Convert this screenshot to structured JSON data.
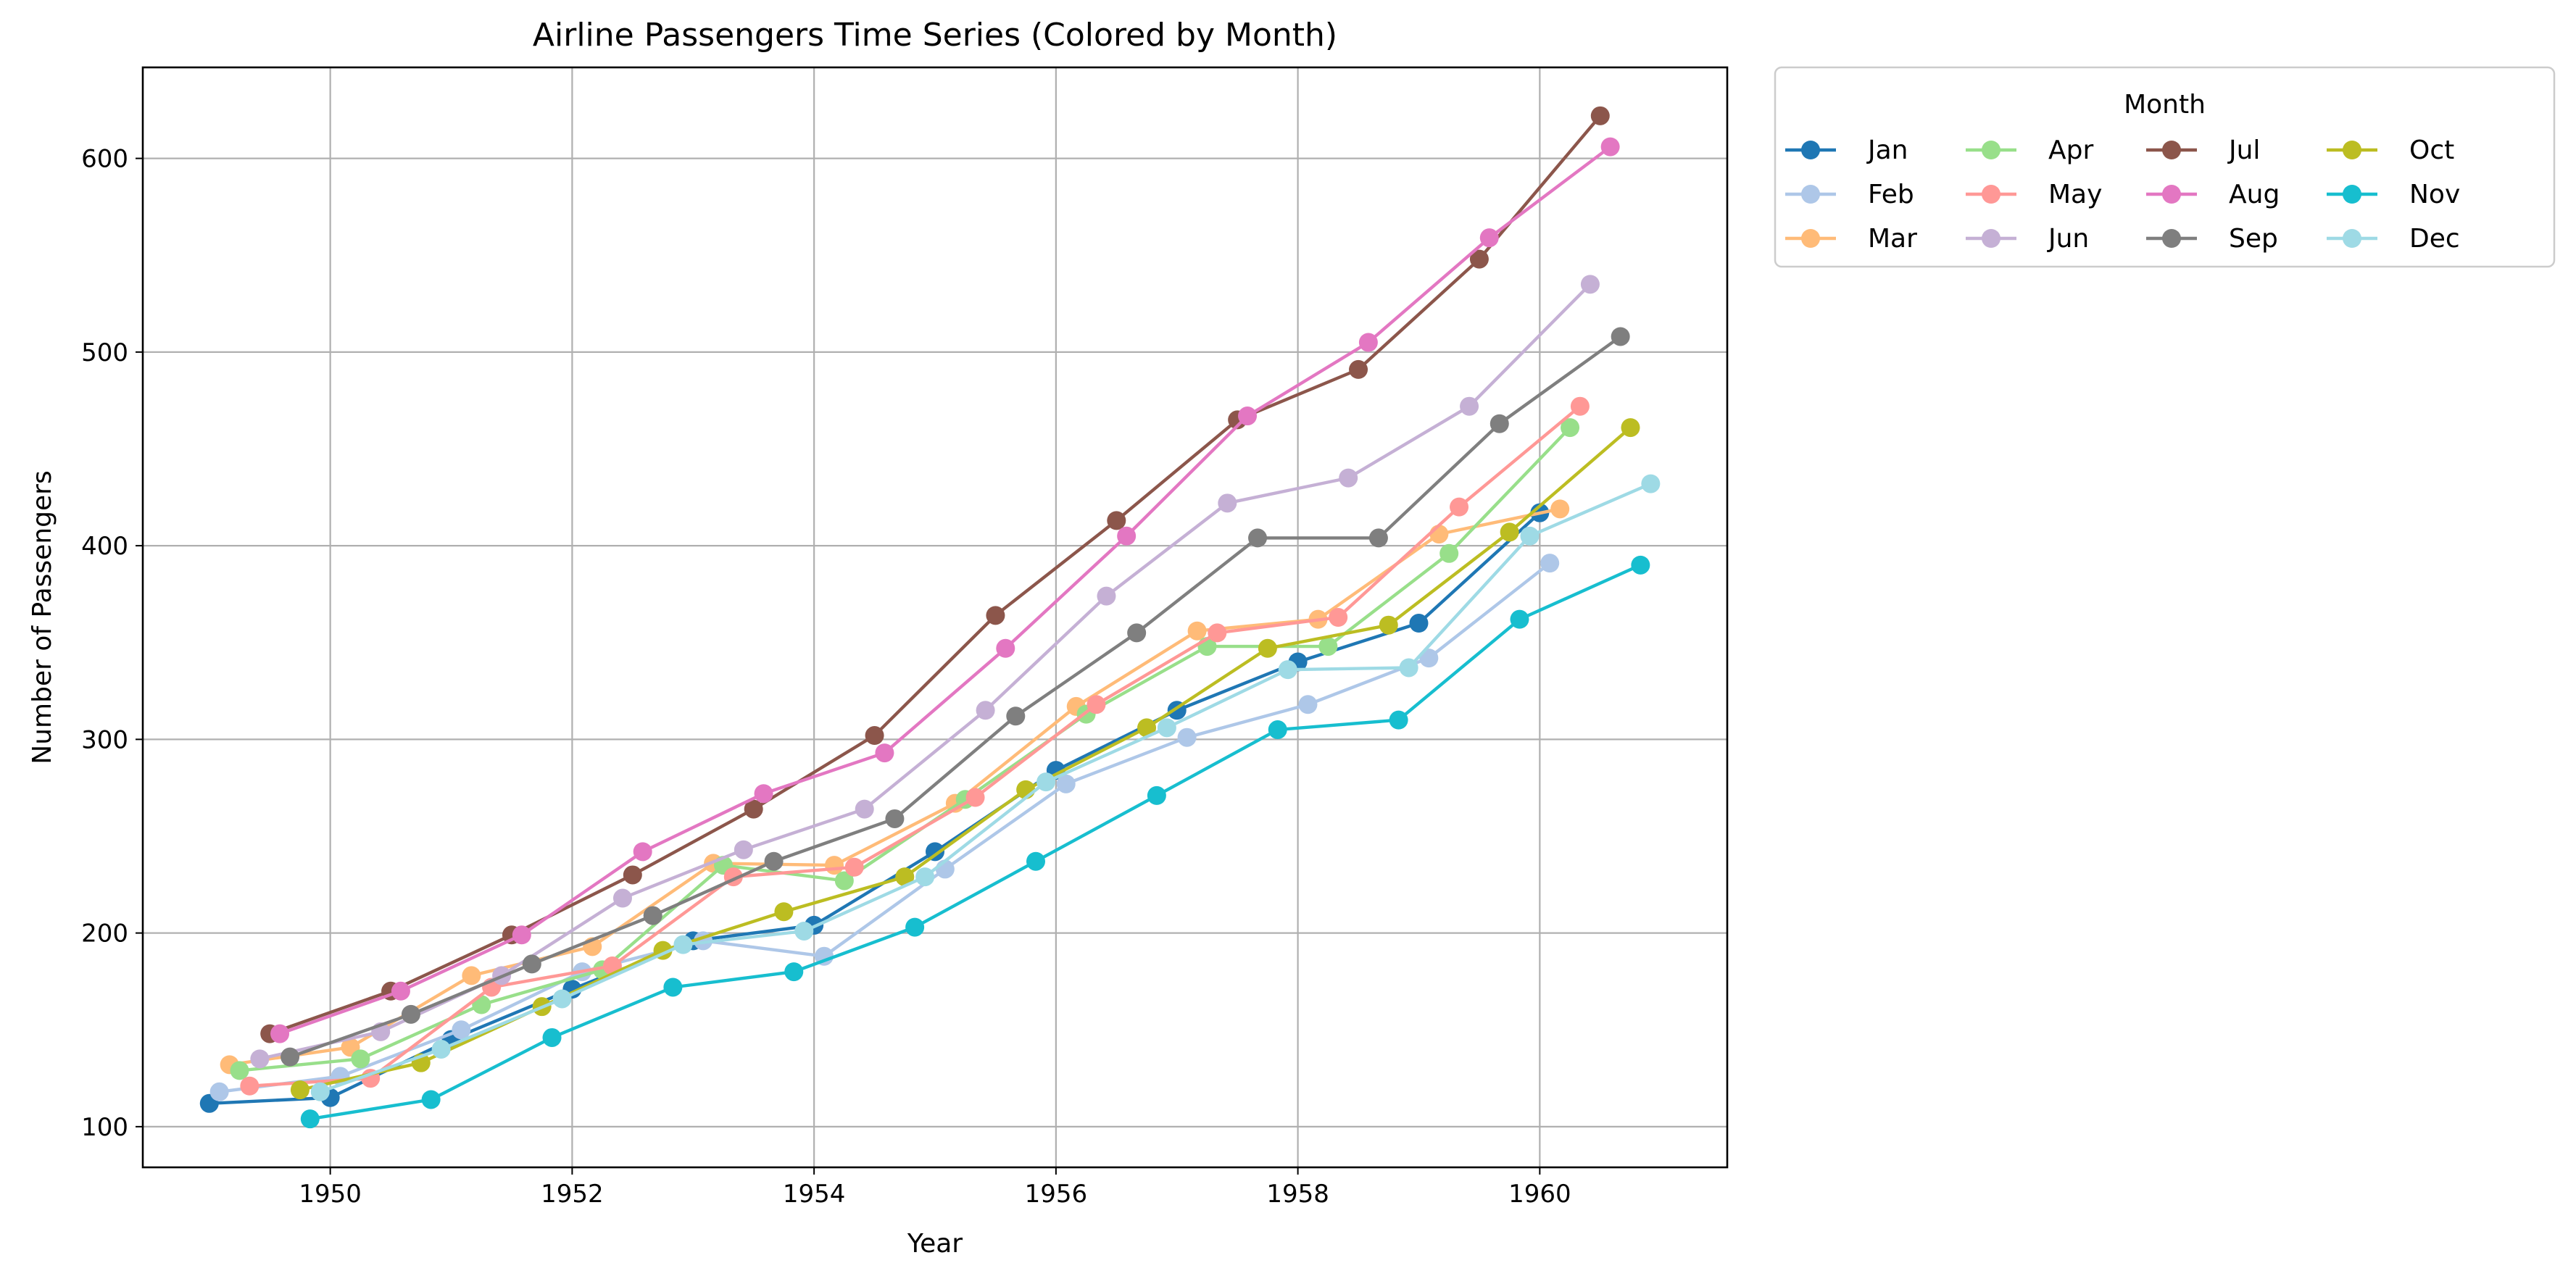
{
  "chart_data": {
    "type": "line",
    "title": "Airline Passengers Time Series (Colored by Month)",
    "xlabel": "Year",
    "ylabel": "Number of Passengers",
    "xlim": [
      1948.45,
      1961.55
    ],
    "ylim": [
      79,
      647
    ],
    "xticks": [
      1950,
      1952,
      1954,
      1956,
      1958,
      1960
    ],
    "yticks": [
      100,
      200,
      300,
      400,
      500,
      600
    ],
    "grid": true,
    "legend": {
      "title": "Month",
      "placement": "outside-top-right",
      "columns": 4
    },
    "series": [
      {
        "name": "Jan",
        "color": "#1f77b4",
        "x": [
          1949.0,
          1950.0,
          1951.0,
          1952.0,
          1953.0,
          1954.0,
          1955.0,
          1956.0,
          1957.0,
          1958.0,
          1959.0,
          1960.0
        ],
        "values": [
          112,
          115,
          145,
          171,
          196,
          204,
          242,
          284,
          315,
          340,
          360,
          417
        ]
      },
      {
        "name": "Feb",
        "color": "#aec7e8",
        "x": [
          1949.083,
          1950.083,
          1951.083,
          1952.083,
          1953.083,
          1954.083,
          1955.083,
          1956.083,
          1957.083,
          1958.083,
          1959.083,
          1960.083
        ],
        "values": [
          118,
          126,
          150,
          180,
          196,
          188,
          233,
          277,
          301,
          318,
          342,
          391
        ]
      },
      {
        "name": "Mar",
        "color": "#ffbb78",
        "x": [
          1949.167,
          1950.167,
          1951.167,
          1952.167,
          1953.167,
          1954.167,
          1955.167,
          1956.167,
          1957.167,
          1958.167,
          1959.167,
          1960.167
        ],
        "values": [
          132,
          141,
          178,
          193,
          236,
          235,
          267,
          317,
          356,
          362,
          406,
          419
        ]
      },
      {
        "name": "Apr",
        "color": "#98df8a",
        "x": [
          1949.25,
          1950.25,
          1951.25,
          1952.25,
          1953.25,
          1954.25,
          1955.25,
          1956.25,
          1957.25,
          1958.25,
          1959.25,
          1960.25
        ],
        "values": [
          129,
          135,
          163,
          181,
          235,
          227,
          269,
          313,
          348,
          348,
          396,
          461
        ]
      },
      {
        "name": "May",
        "color": "#ff9896",
        "x": [
          1949.333,
          1950.333,
          1951.333,
          1952.333,
          1953.333,
          1954.333,
          1955.333,
          1956.333,
          1957.333,
          1958.333,
          1959.333,
          1960.333
        ],
        "values": [
          121,
          125,
          172,
          183,
          229,
          234,
          270,
          318,
          355,
          363,
          420,
          472
        ]
      },
      {
        "name": "Jun",
        "color": "#c5b0d5",
        "x": [
          1949.417,
          1950.417,
          1951.417,
          1952.417,
          1953.417,
          1954.417,
          1955.417,
          1956.417,
          1957.417,
          1958.417,
          1959.417,
          1960.417
        ],
        "values": [
          135,
          149,
          178,
          218,
          243,
          264,
          315,
          374,
          422,
          435,
          472,
          535
        ]
      },
      {
        "name": "Jul",
        "color": "#8c564b",
        "x": [
          1949.5,
          1950.5,
          1951.5,
          1952.5,
          1953.5,
          1954.5,
          1955.5,
          1956.5,
          1957.5,
          1958.5,
          1959.5,
          1960.5
        ],
        "values": [
          148,
          170,
          199,
          230,
          264,
          302,
          364,
          413,
          465,
          491,
          548,
          622
        ]
      },
      {
        "name": "Aug",
        "color": "#e377c2",
        "x": [
          1949.583,
          1950.583,
          1951.583,
          1952.583,
          1953.583,
          1954.583,
          1955.583,
          1956.583,
          1957.583,
          1958.583,
          1959.583,
          1960.583
        ],
        "values": [
          148,
          170,
          199,
          242,
          272,
          293,
          347,
          405,
          467,
          505,
          559,
          606
        ]
      },
      {
        "name": "Sep",
        "color": "#7f7f7f",
        "x": [
          1949.667,
          1950.667,
          1951.667,
          1952.667,
          1953.667,
          1954.667,
          1955.667,
          1956.667,
          1957.667,
          1958.667,
          1959.667,
          1960.667
        ],
        "values": [
          136,
          158,
          184,
          209,
          237,
          259,
          312,
          355,
          404,
          404,
          463,
          508
        ]
      },
      {
        "name": "Oct",
        "color": "#bcbd22",
        "x": [
          1949.75,
          1950.75,
          1951.75,
          1952.75,
          1953.75,
          1954.75,
          1955.75,
          1956.75,
          1957.75,
          1958.75,
          1959.75,
          1960.75
        ],
        "values": [
          119,
          133,
          162,
          191,
          211,
          229,
          274,
          306,
          347,
          359,
          407,
          461
        ]
      },
      {
        "name": "Nov",
        "color": "#17becf",
        "x": [
          1949.833,
          1950.833,
          1951.833,
          1952.833,
          1953.833,
          1954.833,
          1955.833,
          1956.833,
          1957.833,
          1958.833,
          1959.833,
          1960.833
        ],
        "values": [
          104,
          114,
          146,
          172,
          180,
          203,
          237,
          271,
          305,
          310,
          362,
          390
        ]
      },
      {
        "name": "Dec",
        "color": "#9edae5",
        "x": [
          1949.917,
          1950.917,
          1951.917,
          1952.917,
          1953.917,
          1954.917,
          1955.917,
          1956.917,
          1957.917,
          1958.917,
          1959.917,
          1960.917
        ],
        "values": [
          118,
          140,
          166,
          194,
          201,
          229,
          278,
          306,
          336,
          337,
          405,
          432
        ]
      }
    ]
  }
}
